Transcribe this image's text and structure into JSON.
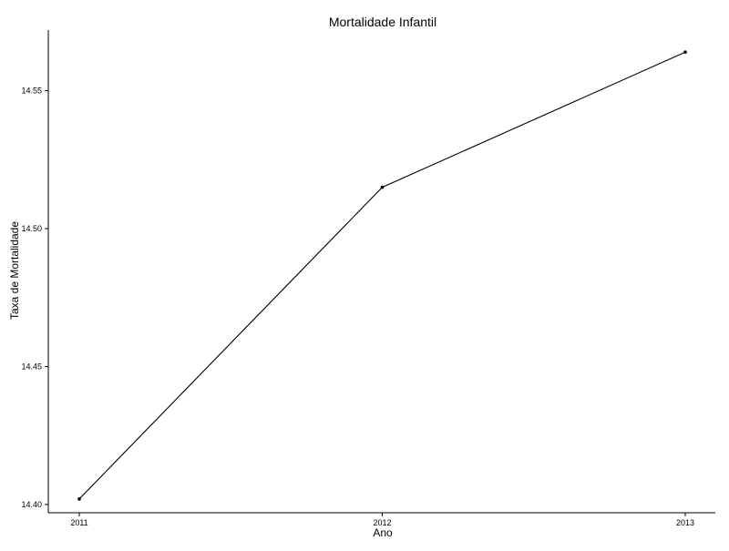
{
  "chart_data": {
    "type": "line",
    "title": "Mortalidade Infantil",
    "xlabel": "Ano",
    "ylabel": "Taxa de Mortalidade",
    "x": [
      "2011",
      "2012",
      "2013"
    ],
    "series": [
      {
        "values": [
          14.402,
          14.515,
          14.564
        ]
      }
    ],
    "ylim": [
      14.397,
      14.572
    ],
    "yticks": [
      "14.40",
      "14.45",
      "14.50",
      "14.55"
    ],
    "grid": false,
    "legend": "none",
    "colors": {
      "line": "#000000",
      "axis": "#000000"
    }
  }
}
